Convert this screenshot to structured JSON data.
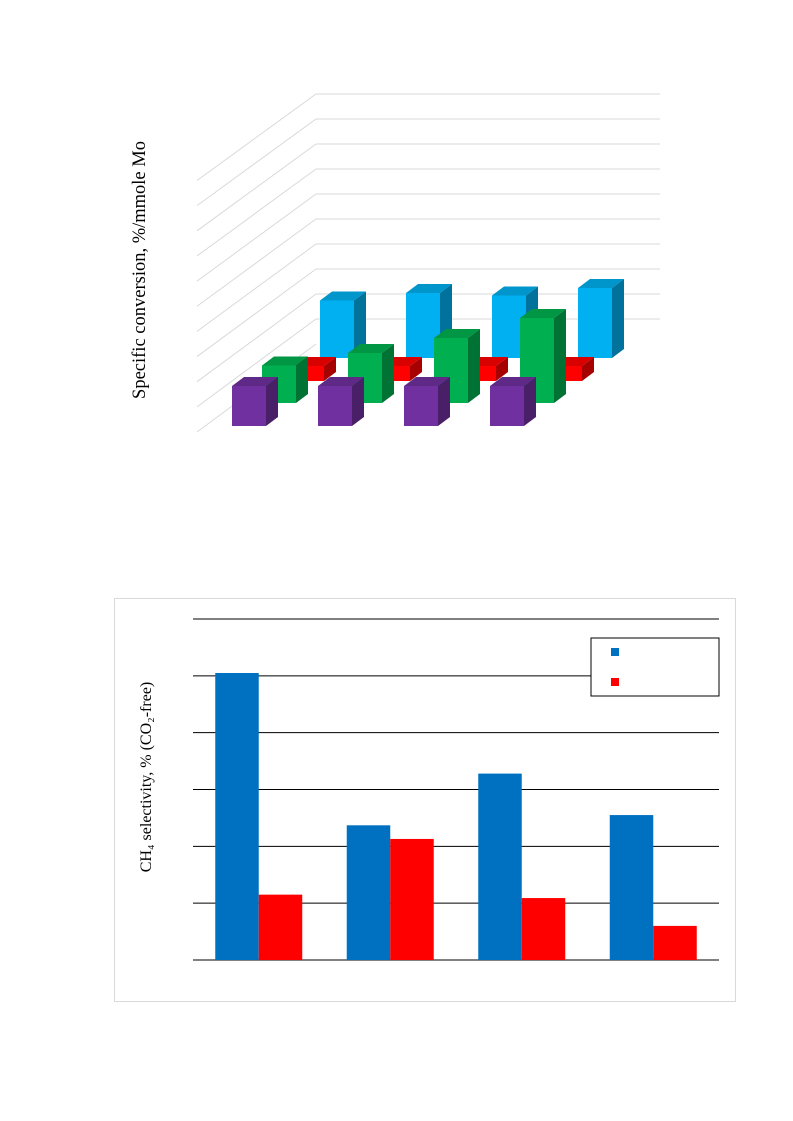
{
  "chart_data": [
    {
      "type": "bar",
      "title": "",
      "ylabel": "Specific conversion, %/mmole Mo",
      "categories": [
        "",
        "",
        "",
        ""
      ],
      "ylim": [
        0,
        14
      ],
      "grid": true,
      "series": [
        {
          "color": "#7030a0",
          "values": [
            1.6,
            1.6,
            1.6,
            1.6
          ]
        },
        {
          "color": "#00b050",
          "values": [
            1.5,
            2.0,
            2.6,
            3.4
          ]
        },
        {
          "color": "#ff0000",
          "values": [
            0.6,
            0.6,
            0.6,
            0.6
          ]
        },
        {
          "color": "#00b0f0",
          "values": [
            2.3,
            2.6,
            2.5,
            2.8
          ]
        }
      ]
    },
    {
      "type": "bar",
      "title": "",
      "ylabel": "CH₄ selectivity, % (CO₂-free)",
      "xlabel": "",
      "categories": [
        "",
        "",
        "",
        ""
      ],
      "ylim": [
        0,
        60
      ],
      "grid": true,
      "legend": "top-right",
      "series": [
        {
          "color": "#0070c0",
          "values": [
            50.5,
            23.7,
            32.8,
            25.5
          ]
        },
        {
          "color": "#ff0000",
          "values": [
            11.5,
            21.3,
            10.9,
            6.0
          ]
        }
      ]
    }
  ]
}
